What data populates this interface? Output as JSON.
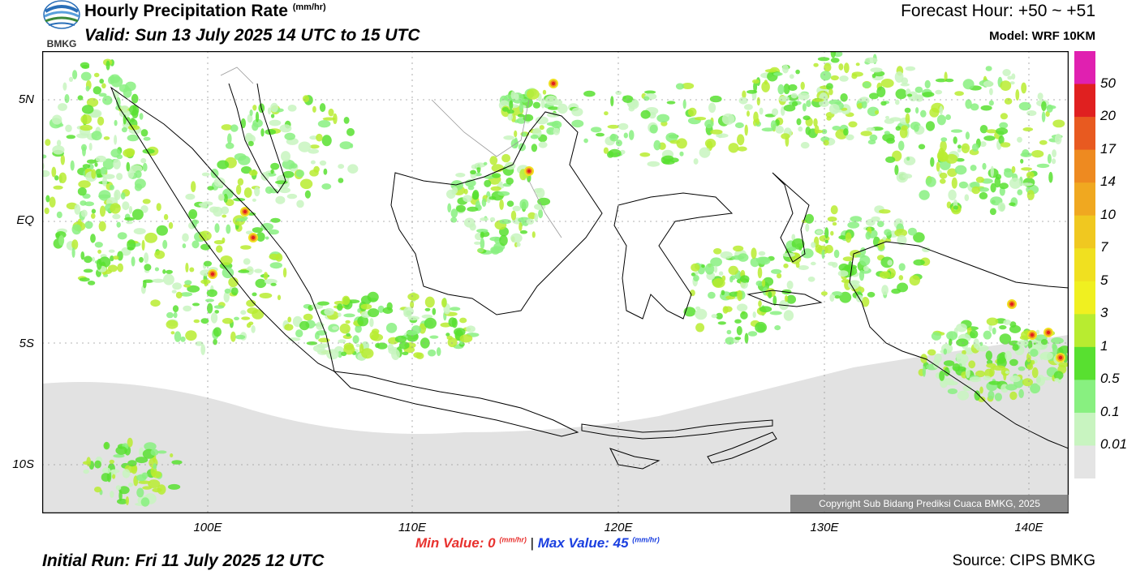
{
  "header": {
    "title": "Hourly Precipitation Rate",
    "title_unit": "(mm/hr)",
    "valid": "Valid: Sun 13 July 2025 14 UTC to 15 UTC",
    "forecast_hour": "Forecast Hour: +50 ~ +51",
    "model": "Model: WRF 10KM",
    "logo_text": "BMKG"
  },
  "map": {
    "lat_labels": [
      "5N",
      "EQ",
      "5S",
      "10S"
    ],
    "lon_labels": [
      "100E",
      "110E",
      "120E",
      "130E",
      "140E"
    ],
    "copyright": "Copyright Sub Bidang Prediksi Cuaca BMKG, 2025"
  },
  "colorbar": {
    "labels": [
      "50",
      "20",
      "17",
      "14",
      "10",
      "7",
      "5",
      "3",
      "1",
      "0.5",
      "0.1",
      "0.01"
    ],
    "colors": [
      "#e020b0",
      "#e02020",
      "#e85a20",
      "#ee8a20",
      "#f0a820",
      "#f0c820",
      "#f0e020",
      "#f0f020",
      "#b8ec30",
      "#58e030",
      "#88f080",
      "#c8f4c0",
      "#e4e4e4"
    ]
  },
  "footer": {
    "min_label": "Min Value:",
    "min_value": "0",
    "max_label": "Max Value:",
    "max_value": "45",
    "unit": "(mm/hr)",
    "separator": "|",
    "initial_run": "Initial Run: Fri 11 July 2025 12 UTC",
    "source": "Source: CIPS BMKG"
  }
}
